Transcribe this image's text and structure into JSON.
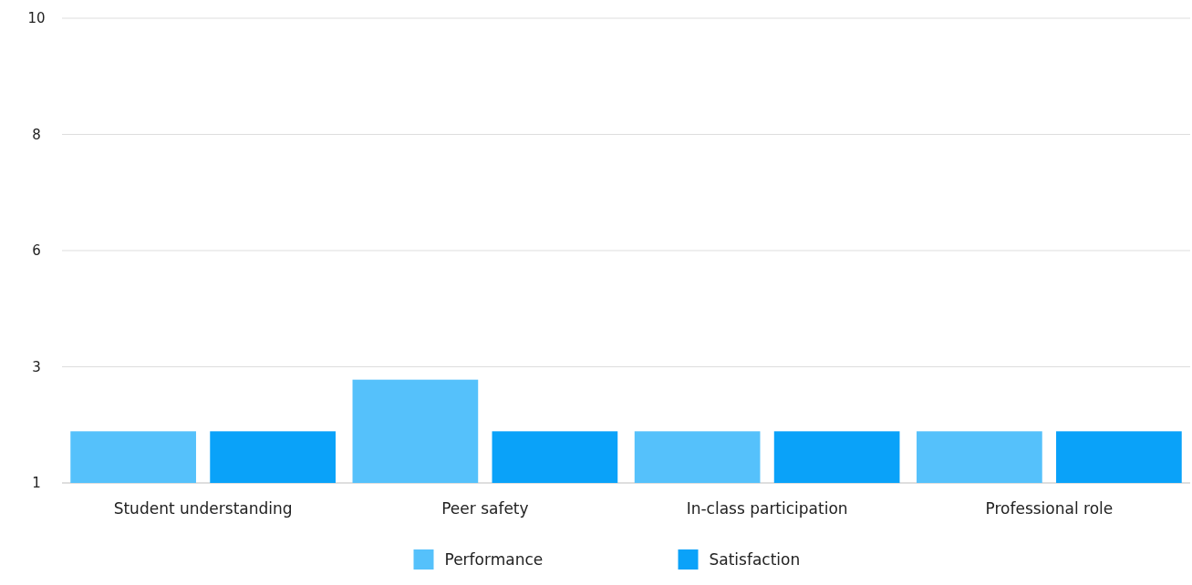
{
  "chart_data": {
    "type": "bar",
    "categories": [
      "Student understanding",
      "Peer safety",
      "In-class participation",
      "Professional role"
    ],
    "series": [
      {
        "name": "Performance",
        "color": "#55c1fb",
        "values": [
          2,
          3,
          2,
          2
        ]
      },
      {
        "name": "Satisfaction",
        "color": "#0aa2f9",
        "values": [
          2,
          2,
          2,
          2
        ]
      }
    ],
    "ylim": [
      1,
      10
    ],
    "yticks": [
      1,
      {
        "value": 3.25,
        "label": "3"
      },
      {
        "value": 5.5,
        "label": "6"
      },
      {
        "value": 7.75,
        "label": "8"
      },
      10
    ],
    "grid": "y",
    "legend": "bottom"
  }
}
